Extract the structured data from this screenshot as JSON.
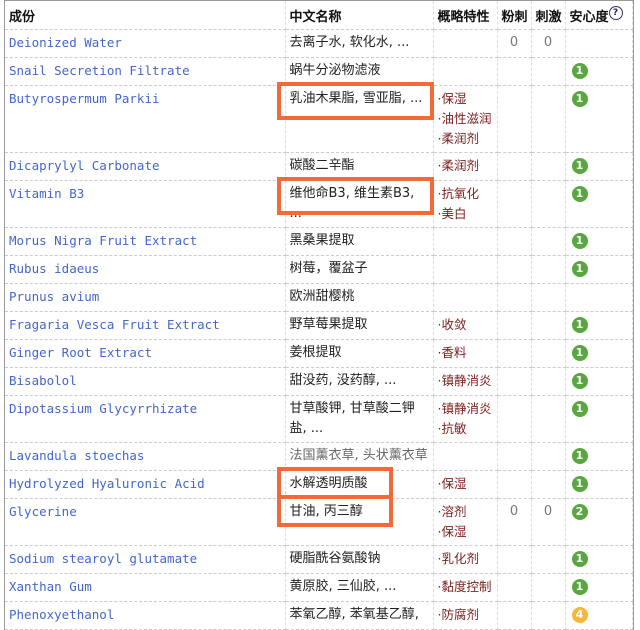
{
  "headers": {
    "ingredient": "成份",
    "chinese": "中文名称",
    "properties": "概略特性",
    "acne": "粉刺",
    "irritation": "刺激",
    "safety": "安心度",
    "help_icon": "?"
  },
  "colors": {
    "safe_green": "#5aa641",
    "warn_yellow": "#f5b83a",
    "highlight": "#f26a3a",
    "link": "#4466cc",
    "property": "#7a1e1e"
  },
  "rows": [
    {
      "name": "Deionized Water",
      "cn": "去离子水, 软化水, ...",
      "props": [],
      "acne": "0",
      "irr": "0",
      "safety": ""
    },
    {
      "name": "Snail Secretion Filtrate",
      "cn": "蜗牛分泌物滤液",
      "props": [],
      "acne": "",
      "irr": "",
      "safety": "1"
    },
    {
      "name": "Butyrospermum Parkii",
      "cn": "乳油木果脂, 雪亚脂, ...",
      "props": [
        "保湿",
        "油性滋润",
        "柔润剂"
      ],
      "acne": "",
      "irr": "",
      "safety": "1",
      "highlight": true
    },
    {
      "name": "Dicaprylyl Carbonate",
      "cn": "碳酸二辛酯",
      "props": [
        "柔润剂"
      ],
      "acne": "",
      "irr": "",
      "safety": "1"
    },
    {
      "name": "Vitamin B3",
      "cn": "维他命B3, 维生素B3, ...",
      "props": [
        "抗氧化",
        "美白"
      ],
      "acne": "",
      "irr": "",
      "safety": "1",
      "highlight": true
    },
    {
      "name": "Morus Nigra Fruit Extract",
      "cn": "黑桑果提取",
      "props": [],
      "acne": "",
      "irr": "",
      "safety": "1"
    },
    {
      "name": "Rubus idaeus",
      "cn": "树莓，覆盆子",
      "props": [],
      "acne": "",
      "irr": "",
      "safety": "1"
    },
    {
      "name": "Prunus avium",
      "cn": "欧洲甜樱桃",
      "props": [],
      "acne": "",
      "irr": "",
      "safety": ""
    },
    {
      "name": "Fragaria Vesca Fruit Extract",
      "cn": "野草莓果提取",
      "props": [
        "收敛"
      ],
      "acne": "",
      "irr": "",
      "safety": "1"
    },
    {
      "name": "Ginger Root Extract",
      "cn": "姜根提取",
      "props": [
        "香料"
      ],
      "acne": "",
      "irr": "",
      "safety": "1"
    },
    {
      "name": "Bisabolol",
      "cn": "甜没药, 没药醇, ...",
      "props": [
        "镇静消炎"
      ],
      "acne": "",
      "irr": "",
      "safety": "1"
    },
    {
      "name": "Dipotassium Glycyrrhizate",
      "cn": "甘草酸钾, 甘草酸二钾盐, ...",
      "props": [
        "镇静消炎",
        "抗敏"
      ],
      "acne": "",
      "irr": "",
      "safety": "1"
    },
    {
      "name": "Lavandula stoechas",
      "cn": "法国薰衣草, 头状薰衣草",
      "props": [],
      "acne": "",
      "irr": "",
      "safety": "1",
      "gray": true
    },
    {
      "name": "Hydrolyzed Hyaluronic Acid",
      "cn": "水解透明质酸",
      "props": [
        "保湿"
      ],
      "acne": "",
      "irr": "",
      "safety": "1",
      "highlight": true,
      "short": true
    },
    {
      "name": "Glycerine",
      "cn": "甘油, 丙三醇",
      "props": [
        "溶剂",
        "保湿"
      ],
      "acne": "0",
      "irr": "0",
      "safety": "2",
      "highlight": true,
      "short": true
    },
    {
      "name": "Sodium stearoyl glutamate",
      "cn": "硬脂酰谷氨酸钠",
      "props": [
        "乳化剂"
      ],
      "acne": "",
      "irr": "",
      "safety": "1"
    },
    {
      "name": "Xanthan Gum",
      "cn": "黄原胶, 三仙胶, ...",
      "props": [
        "黏度控制"
      ],
      "acne": "",
      "irr": "",
      "safety": "1"
    },
    {
      "name": "Phenoxyethanol",
      "cn": "苯氧乙醇, 苯氧基乙醇,",
      "props": [
        "防腐剂"
      ],
      "acne": "",
      "irr": "",
      "safety": "4"
    }
  ]
}
